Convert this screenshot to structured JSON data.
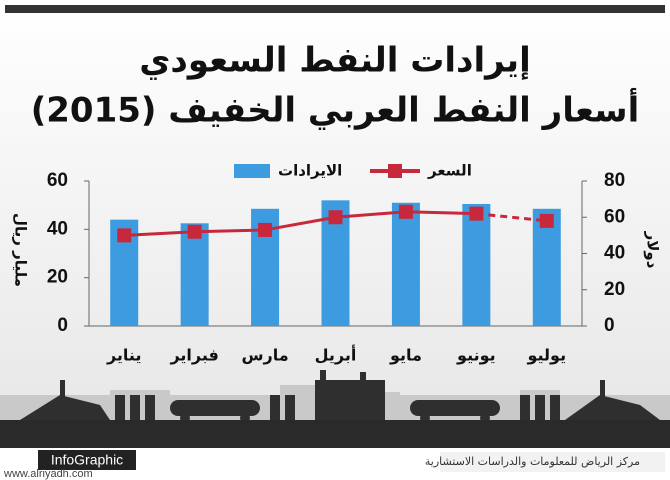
{
  "chart_data": {
    "type": "combo",
    "title": "إيرادات النفط السعودي",
    "subtitle": "أسعار النفط العربي الخفيف (2015)",
    "y_label": "مليار ريال",
    "y2_label": "دولار",
    "categories": [
      "يناير",
      "فبراير",
      "مارس",
      "أبريل",
      "مايو",
      "يونيو",
      "يوليو"
    ],
    "series": [
      {
        "name": "الايرادات",
        "type": "bar",
        "color": "#3d9be0",
        "values": [
          44,
          42.5,
          48.5,
          52,
          51,
          50.5,
          48.5
        ]
      },
      {
        "name": "السعر",
        "type": "line",
        "axis": "y2",
        "color": "#c8283c",
        "last_segment_dashed": true,
        "values": [
          50,
          52,
          53,
          60,
          63,
          62,
          58
        ]
      }
    ],
    "ylim": [
      0,
      60
    ],
    "yticks": [
      0,
      20,
      40,
      60
    ],
    "y2lim": [
      0,
      80
    ],
    "y2ticks": [
      0,
      20,
      40,
      60,
      80
    ],
    "footer": {
      "brand": "InfoGraphic",
      "url": "www.alriyadh.com",
      "center": "مركز الرياض للمعلومات والدراسات الاستشارية"
    }
  }
}
